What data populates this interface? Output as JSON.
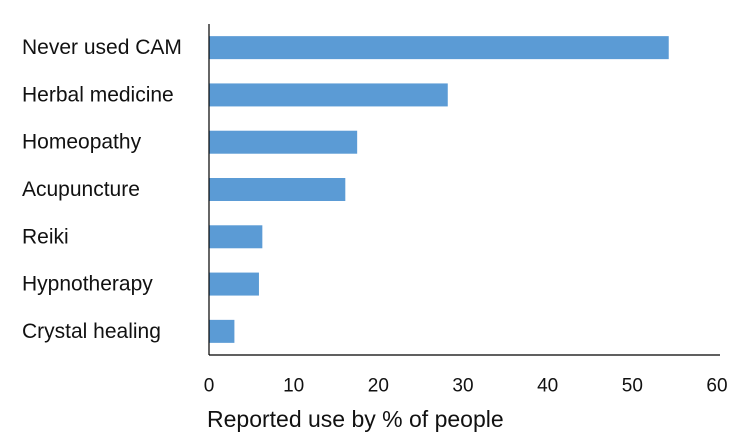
{
  "chart_data": {
    "type": "bar",
    "orientation": "horizontal",
    "categories": [
      "Never used CAM",
      "Herbal medicine",
      "Homeopathy",
      "Acupuncture",
      "Reiki",
      "Hypnotherapy",
      "Crystal healing"
    ],
    "values": [
      54.3,
      28.2,
      17.5,
      16.1,
      6.3,
      5.9,
      3.0
    ],
    "xlabel": "Reported use by % of people",
    "xlim": [
      0,
      60
    ],
    "xticks": [
      0,
      10,
      20,
      30,
      40,
      50,
      60
    ],
    "bar_color": "#5B9BD5",
    "grid": false,
    "legend": "none"
  }
}
